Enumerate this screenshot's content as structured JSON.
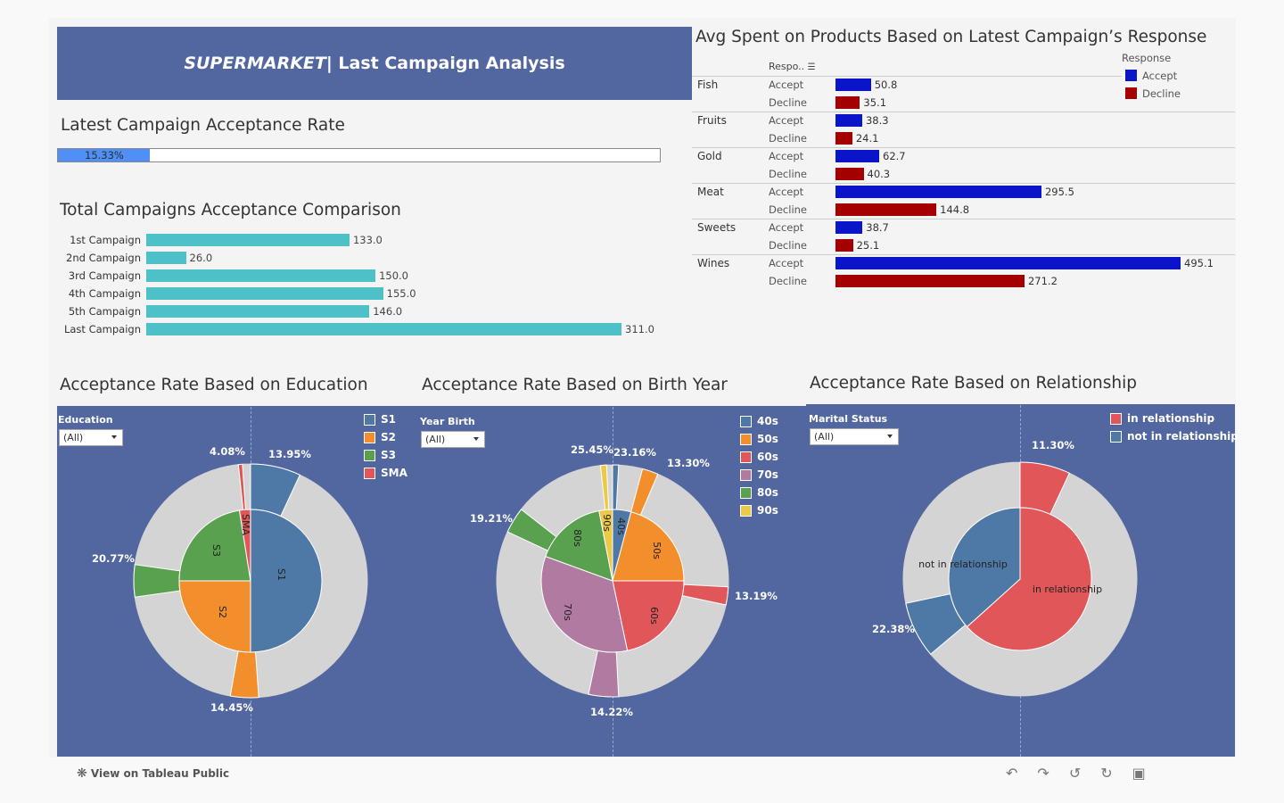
{
  "dashboard": {
    "banner_em": "SUPERMARKET",
    "banner_rest": " | Last Campaign Analysis"
  },
  "acceptance_rate": {
    "title": "Latest Campaign Acceptance Rate",
    "value_label": "15.33%",
    "fraction": 0.1533
  },
  "comparison": {
    "title": "Total Campaigns Acceptance Comparison",
    "rows": [
      {
        "label": "1st Campaign",
        "value": "133.0"
      },
      {
        "label": "2nd Campaign",
        "value": "26.0"
      },
      {
        "label": "3rd Campaign",
        "value": "150.0"
      },
      {
        "label": "4th Campaign",
        "value": "155.0"
      },
      {
        "label": "5th Campaign",
        "value": "146.0"
      },
      {
        "label": "Last Campaign",
        "value": "311.0"
      }
    ]
  },
  "avg_spent": {
    "title": "Avg Spent on Products Based on Latest Campaign’s Response",
    "column_header": "Respo..",
    "legend_title": "Response",
    "legend": [
      {
        "label": "Accept",
        "color": "#0a14c8"
      },
      {
        "label": "Decline",
        "color": "#a50000"
      }
    ],
    "categories": [
      {
        "name": "Fish",
        "accept_label": "Accept",
        "decline_label": "Decline",
        "accept": "50.8",
        "decline": "35.1"
      },
      {
        "name": "Fruits",
        "accept_label": "Accept",
        "decline_label": "Decline",
        "accept": "38.3",
        "decline": "24.1"
      },
      {
        "name": "Gold",
        "accept_label": "Accept",
        "decline_label": "Decline",
        "accept": "62.7",
        "decline": "40.3"
      },
      {
        "name": "Meat",
        "accept_label": "Accept",
        "decline_label": "Decline",
        "accept": "295.5",
        "decline": "144.8"
      },
      {
        "name": "Sweets",
        "accept_label": "Accept",
        "decline_label": "Decline",
        "accept": "38.7",
        "decline": "25.1"
      },
      {
        "name": "Wines",
        "accept_label": "Accept",
        "decline_label": "Decline",
        "accept": "495.1",
        "decline": "271.2"
      }
    ]
  },
  "education": {
    "title": "Acceptance Rate Based on Education",
    "filter_label": "Education",
    "filter_value": "(All)",
    "legend": [
      {
        "label": "S1",
        "color": "#4e79a7"
      },
      {
        "label": "S2",
        "color": "#f28e2b"
      },
      {
        "label": "S3",
        "color": "#59a14f"
      },
      {
        "label": "SMA",
        "color": "#e15759"
      }
    ],
    "outer_labels": [
      "4.08%",
      "13.95%",
      "20.77%",
      "14.45%"
    ],
    "slice_labels": [
      "S1",
      "S2",
      "S3",
      "SMA"
    ]
  },
  "birth_year": {
    "title": "Acceptance Rate Based on Birth Year",
    "filter_label": "Year Birth",
    "filter_value": "(All)",
    "legend": [
      {
        "label": "40s",
        "color": "#4e79a7"
      },
      {
        "label": "50s",
        "color": "#f28e2b"
      },
      {
        "label": "60s",
        "color": "#e15759"
      },
      {
        "label": "70s",
        "color": "#b07aa1"
      },
      {
        "label": "80s",
        "color": "#59a14f"
      },
      {
        "label": "90s",
        "color": "#edc948"
      }
    ],
    "outer_labels": [
      "25.45%",
      "23.16%",
      "13.30%",
      "19.21%",
      "13.19%",
      "14.22%"
    ],
    "slice_labels": [
      "40s",
      "50s",
      "60s",
      "70s",
      "80s",
      "90s"
    ]
  },
  "relationship": {
    "title": "Acceptance Rate Based on Relationship",
    "filter_label": "Marital Status",
    "filter_value": "(All)",
    "legend": [
      {
        "label": "in relationship",
        "color": "#e15759"
      },
      {
        "label": "not in relationship",
        "color": "#4e79a7"
      }
    ],
    "outer_labels": [
      "11.30%",
      "22.38%"
    ],
    "slice_labels": [
      "not in relationship",
      "in relationship"
    ]
  },
  "footer": {
    "view_link": "View on Tableau Public",
    "icons": [
      "undo-icon",
      "redo-icon",
      "revert-icon",
      "share-icon",
      "fullscreen-icon"
    ]
  }
}
